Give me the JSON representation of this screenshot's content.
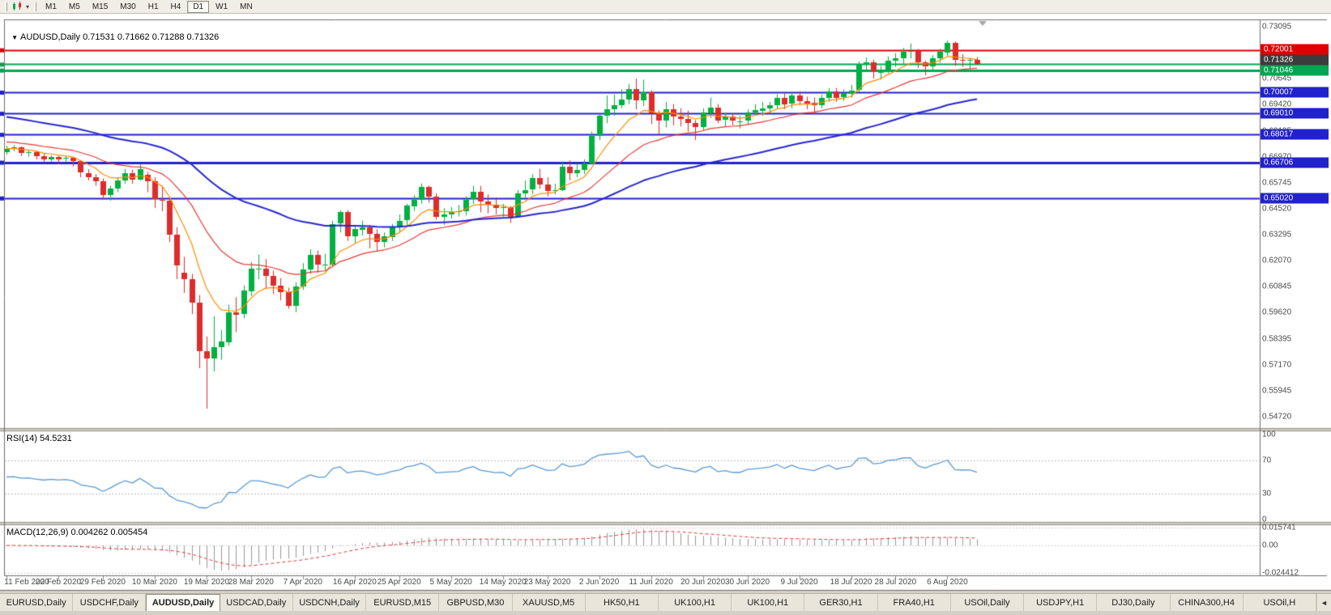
{
  "toolbar": {
    "timeframes": [
      "M1",
      "M5",
      "M15",
      "M30",
      "H1",
      "H4",
      "D1",
      "W1",
      "MN"
    ],
    "active": "D1"
  },
  "chart": {
    "symbol_title": "AUDUSD,Daily",
    "ohlc_text": "0.71531 0.71662 0.71288 0.71326",
    "colors": {
      "bull": "#00b141",
      "bear": "#dd2c2c",
      "ma_fast": "#ff8c00",
      "ma_mid": "#e53935",
      "ma_slow": "#2727cf",
      "rsi_line": "#5b9bd5",
      "macd_hist": "#999999",
      "macd_signal": "#e53935",
      "axis_text": "#4b4b4b"
    },
    "levels": [
      {
        "price": 0.72001,
        "label": "0.72001",
        "line": "#e00000",
        "box": "#e00000",
        "width": 2
      },
      {
        "price": 0.71326,
        "label": "0.71326",
        "line": "#00a651",
        "box": "#3c3c3c",
        "width": 2
      },
      {
        "price": 0.71046,
        "label": "0.71046",
        "line": "#00a651",
        "box": "#00a651",
        "width": 3
      },
      {
        "price": 0.70007,
        "label": "0.70007",
        "line": "#2222cc",
        "box": "#2222cc",
        "width": 2
      },
      {
        "price": 0.6901,
        "label": "0.69010",
        "line": "#2222cc",
        "box": "#2222cc",
        "width": 2
      },
      {
        "price": 0.68017,
        "label": "0.68017",
        "line": "#2222cc",
        "box": "#2222cc",
        "width": 2
      },
      {
        "price": 0.66706,
        "label": "0.66706",
        "line": "#2222cc",
        "box": "#2222cc",
        "width": 3
      },
      {
        "price": 0.6502,
        "label": "0.65020",
        "line": "#2222cc",
        "box": "#2222cc",
        "width": 2
      }
    ],
    "price_axis_labels": [
      "0.73095",
      "0.71870",
      "0.70645",
      "0.69420",
      "0.68195",
      "0.66970",
      "0.65745",
      "0.64520",
      "0.63295",
      "0.62070",
      "0.60845",
      "0.59620",
      "0.58395",
      "0.57170",
      "0.55945",
      "0.54720"
    ]
  },
  "rsi": {
    "label": "RSI(14) 54.5231",
    "axis_labels": [
      "100",
      "70",
      "30",
      "0"
    ],
    "dotted_levels": [
      70,
      30
    ]
  },
  "macd": {
    "label": "MACD(12,26,9) 0.004262 0.005454",
    "axis_labels": [
      "0.015741",
      "0.00",
      "-0.024412"
    ]
  },
  "chart_data": {
    "type": "candlestick",
    "symbol": "AUDUSD",
    "timeframe": "Daily",
    "title": "AUDUSD,Daily 0.71531 0.71662 0.71288 0.71326",
    "ylim": [
      0.54182,
      0.734
    ],
    "date_labels": [
      "11 Feb 2020",
      "20 Feb 2020",
      "29 Feb 2020",
      "10 Mar 2020",
      "19 Mar 2020",
      "28 Mar 2020",
      "7 Apr 2020",
      "16 Apr 2020",
      "25 Apr 2020",
      "5 May 2020",
      "14 May 2020",
      "23 May 2020",
      "2 Jun 2020",
      "11 Jun 2020",
      "20 Jun 2020",
      "30 Jun 2020",
      "9 Jul 2020",
      "18 Jul 2020",
      "28 Jul 2020",
      "6 Aug 2020"
    ],
    "date_label_indices": [
      0,
      7,
      13,
      20,
      27,
      33,
      40,
      47,
      53,
      60,
      67,
      73,
      80,
      87,
      94,
      100,
      107,
      114,
      120,
      127
    ],
    "ohlc": [
      [
        0.672,
        0.6748,
        0.6706,
        0.6735
      ],
      [
        0.6735,
        0.6752,
        0.6722,
        0.674
      ],
      [
        0.674,
        0.6745,
        0.67,
        0.6715
      ],
      [
        0.6715,
        0.673,
        0.6697,
        0.672
      ],
      [
        0.672,
        0.6726,
        0.6684,
        0.67
      ],
      [
        0.67,
        0.6712,
        0.667,
        0.6685
      ],
      [
        0.6685,
        0.6703,
        0.6674,
        0.6695
      ],
      [
        0.6695,
        0.67,
        0.6662,
        0.6685
      ],
      [
        0.6685,
        0.6698,
        0.6668,
        0.669
      ],
      [
        0.669,
        0.6696,
        0.665,
        0.6675
      ],
      [
        0.6675,
        0.668,
        0.66,
        0.662
      ],
      [
        0.662,
        0.6638,
        0.6585,
        0.66
      ],
      [
        0.66,
        0.6615,
        0.656,
        0.658
      ],
      [
        0.658,
        0.6595,
        0.6495,
        0.6515
      ],
      [
        0.6515,
        0.656,
        0.649,
        0.6545
      ],
      [
        0.6545,
        0.66,
        0.653,
        0.6585
      ],
      [
        0.6585,
        0.664,
        0.657,
        0.662
      ],
      [
        0.662,
        0.6635,
        0.657,
        0.659
      ],
      [
        0.659,
        0.666,
        0.6585,
        0.664
      ],
      [
        0.661,
        0.6625,
        0.653,
        0.658
      ],
      [
        0.658,
        0.66,
        0.6455,
        0.6495
      ],
      [
        0.6495,
        0.656,
        0.644,
        0.649
      ],
      [
        0.649,
        0.65,
        0.6295,
        0.633
      ],
      [
        0.633,
        0.6365,
        0.612,
        0.6185
      ],
      [
        0.615,
        0.6225,
        0.6055,
        0.612
      ],
      [
        0.612,
        0.6145,
        0.5955,
        0.601
      ],
      [
        0.601,
        0.6045,
        0.57,
        0.578
      ],
      [
        0.578,
        0.585,
        0.551,
        0.5745
      ],
      [
        0.5745,
        0.5945,
        0.5685,
        0.58
      ],
      [
        0.58,
        0.588,
        0.574,
        0.5825
      ],
      [
        0.5825,
        0.6,
        0.5805,
        0.5965
      ],
      [
        0.5965,
        0.6035,
        0.587,
        0.5955
      ],
      [
        0.5955,
        0.609,
        0.5935,
        0.6065
      ],
      [
        0.6065,
        0.62,
        0.604,
        0.617
      ],
      [
        0.617,
        0.6235,
        0.612,
        0.617
      ],
      [
        0.617,
        0.6215,
        0.6075,
        0.6135
      ],
      [
        0.6135,
        0.616,
        0.605,
        0.609
      ],
      [
        0.609,
        0.6125,
        0.602,
        0.606
      ],
      [
        0.606,
        0.608,
        0.598,
        0.5995
      ],
      [
        0.5995,
        0.6105,
        0.5965,
        0.6085
      ],
      [
        0.6085,
        0.6195,
        0.607,
        0.6165
      ],
      [
        0.6165,
        0.626,
        0.6145,
        0.6235
      ],
      [
        0.6235,
        0.6255,
        0.615,
        0.619
      ],
      [
        0.619,
        0.624,
        0.616,
        0.619
      ],
      [
        0.619,
        0.6395,
        0.618,
        0.638
      ],
      [
        0.638,
        0.6445,
        0.634,
        0.6435
      ],
      [
        0.6435,
        0.6445,
        0.63,
        0.632
      ],
      [
        0.632,
        0.6375,
        0.629,
        0.6355
      ],
      [
        0.6355,
        0.6395,
        0.6325,
        0.6365
      ],
      [
        0.6365,
        0.6375,
        0.6265,
        0.6335
      ],
      [
        0.6335,
        0.6355,
        0.625,
        0.6295
      ],
      [
        0.6295,
        0.634,
        0.627,
        0.632
      ],
      [
        0.632,
        0.638,
        0.63,
        0.6365
      ],
      [
        0.6365,
        0.6425,
        0.6345,
        0.6395
      ],
      [
        0.6395,
        0.6475,
        0.6375,
        0.6465
      ],
      [
        0.6465,
        0.6515,
        0.644,
        0.6495
      ],
      [
        0.6495,
        0.657,
        0.6475,
        0.6555
      ],
      [
        0.6555,
        0.656,
        0.648,
        0.651
      ],
      [
        0.651,
        0.6525,
        0.64,
        0.6415
      ],
      [
        0.6415,
        0.6455,
        0.6375,
        0.6425
      ],
      [
        0.6425,
        0.646,
        0.6405,
        0.6435
      ],
      [
        0.6435,
        0.647,
        0.6415,
        0.644
      ],
      [
        0.644,
        0.651,
        0.642,
        0.6495
      ],
      [
        0.6495,
        0.656,
        0.6475,
        0.653
      ],
      [
        0.653,
        0.656,
        0.6435,
        0.6485
      ],
      [
        0.6485,
        0.652,
        0.643,
        0.647
      ],
      [
        0.647,
        0.6505,
        0.6425,
        0.6455
      ],
      [
        0.6455,
        0.6475,
        0.6415,
        0.646
      ],
      [
        0.646,
        0.6465,
        0.6385,
        0.6415
      ],
      [
        0.6415,
        0.654,
        0.641,
        0.6525
      ],
      [
        0.6525,
        0.6585,
        0.6505,
        0.654
      ],
      [
        0.654,
        0.6615,
        0.652,
        0.6595
      ],
      [
        0.6595,
        0.664,
        0.6545,
        0.6565
      ],
      [
        0.6565,
        0.66,
        0.651,
        0.6535
      ],
      [
        0.6535,
        0.657,
        0.652,
        0.654
      ],
      [
        0.654,
        0.6675,
        0.6535,
        0.665
      ],
      [
        0.665,
        0.668,
        0.6585,
        0.662
      ],
      [
        0.662,
        0.6665,
        0.66,
        0.6635
      ],
      [
        0.6635,
        0.6685,
        0.6615,
        0.6665
      ],
      [
        0.6665,
        0.6815,
        0.666,
        0.6795
      ],
      [
        0.6795,
        0.69,
        0.6775,
        0.689
      ],
      [
        0.689,
        0.6985,
        0.6855,
        0.692
      ],
      [
        0.692,
        0.699,
        0.689,
        0.694
      ],
      [
        0.694,
        0.7015,
        0.6925,
        0.6965
      ],
      [
        0.6965,
        0.704,
        0.6945,
        0.7015
      ],
      [
        0.7015,
        0.7065,
        0.692,
        0.696
      ],
      [
        0.696,
        0.706,
        0.6935,
        0.7
      ],
      [
        0.7,
        0.701,
        0.685,
        0.69
      ],
      [
        0.69,
        0.6915,
        0.68,
        0.6865
      ],
      [
        0.6865,
        0.6955,
        0.6835,
        0.692
      ],
      [
        0.692,
        0.6945,
        0.6845,
        0.6885
      ],
      [
        0.6885,
        0.6925,
        0.684,
        0.6875
      ],
      [
        0.6875,
        0.6915,
        0.6815,
        0.6855
      ],
      [
        0.6855,
        0.687,
        0.6775,
        0.6835
      ],
      [
        0.6835,
        0.6925,
        0.682,
        0.6905
      ],
      [
        0.6905,
        0.6975,
        0.688,
        0.693
      ],
      [
        0.693,
        0.6945,
        0.6855,
        0.687
      ],
      [
        0.687,
        0.6905,
        0.684,
        0.6885
      ],
      [
        0.6885,
        0.69,
        0.6845,
        0.6865
      ],
      [
        0.6865,
        0.689,
        0.683,
        0.6865
      ],
      [
        0.6865,
        0.692,
        0.685,
        0.6905
      ],
      [
        0.6905,
        0.6945,
        0.689,
        0.6915
      ],
      [
        0.6915,
        0.6955,
        0.689,
        0.6925
      ],
      [
        0.6925,
        0.6955,
        0.69,
        0.694
      ],
      [
        0.694,
        0.699,
        0.692,
        0.6975
      ],
      [
        0.6975,
        0.6995,
        0.692,
        0.6945
      ],
      [
        0.6945,
        0.7,
        0.6925,
        0.6985
      ],
      [
        0.6985,
        0.7005,
        0.694,
        0.696
      ],
      [
        0.696,
        0.698,
        0.692,
        0.695
      ],
      [
        0.695,
        0.6975,
        0.69,
        0.694
      ],
      [
        0.694,
        0.699,
        0.6925,
        0.6975
      ],
      [
        0.6975,
        0.702,
        0.6955,
        0.7005
      ],
      [
        0.7005,
        0.702,
        0.6955,
        0.6975
      ],
      [
        0.6975,
        0.7015,
        0.696,
        0.6995
      ],
      [
        0.6995,
        0.7035,
        0.6975,
        0.701
      ],
      [
        0.701,
        0.7145,
        0.7,
        0.713
      ],
      [
        0.713,
        0.7165,
        0.71,
        0.714
      ],
      [
        0.714,
        0.7155,
        0.7065,
        0.7095
      ],
      [
        0.7095,
        0.7125,
        0.706,
        0.7105
      ],
      [
        0.7105,
        0.717,
        0.709,
        0.715
      ],
      [
        0.715,
        0.7185,
        0.712,
        0.716
      ],
      [
        0.716,
        0.721,
        0.7135,
        0.719
      ],
      [
        0.719,
        0.723,
        0.716,
        0.7195
      ],
      [
        0.7195,
        0.7205,
        0.7115,
        0.714
      ],
      [
        0.714,
        0.715,
        0.708,
        0.712
      ],
      [
        0.712,
        0.7175,
        0.71,
        0.716
      ],
      [
        0.716,
        0.7205,
        0.714,
        0.719
      ],
      [
        0.719,
        0.7245,
        0.717,
        0.7235
      ],
      [
        0.7235,
        0.724,
        0.7125,
        0.7155
      ],
      [
        0.7155,
        0.718,
        0.712,
        0.715
      ],
      [
        0.715,
        0.7162,
        0.7105,
        0.7153
      ],
      [
        0.71531,
        0.71662,
        0.71288,
        0.71326
      ]
    ]
  },
  "tabs": {
    "items": [
      "EURUSD,Daily",
      "USDCHF,Daily",
      "AUDUSD,Daily",
      "USDCAD,Daily",
      "USDCNH,Daily",
      "EURUSD,M15",
      "GBPUSD,M30",
      "XAUUSD,M5",
      "HK50,H1",
      "UK100,H1",
      "UK100,H1",
      "GER30,H1",
      "FRA40,H1",
      "USOil,Daily",
      "USDJPY,H1",
      "DJ30,Daily",
      "CHINA300,H4",
      "USOil,H"
    ],
    "active_index": 2,
    "scroll_arrow": "◄"
  }
}
